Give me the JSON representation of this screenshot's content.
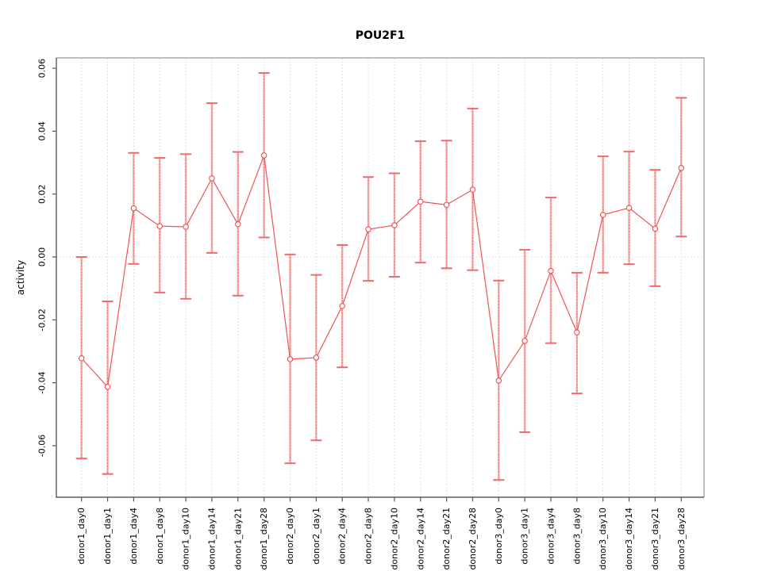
{
  "figure": {
    "background": "#ffffff"
  },
  "chart_data": {
    "type": "line",
    "title": "POU2F1",
    "xlabel": "",
    "ylabel": "activity",
    "legend": "none",
    "marker": "open-circle",
    "error_bars": true,
    "grid": {
      "vertical": "dotted",
      "zero_line": "dotted",
      "horizontal": "off"
    },
    "categories": [
      "donor1_day0",
      "donor1_day1",
      "donor1_day4",
      "donor1_day8",
      "donor1_day10",
      "donor1_day14",
      "donor1_day21",
      "donor1_day28",
      "donor2_day0",
      "donor2_day1",
      "donor2_day4",
      "donor2_day8",
      "donor2_day10",
      "donor2_day14",
      "donor2_day21",
      "donor2_day28",
      "donor3_day0",
      "donor3_day1",
      "donor3_day4",
      "donor3_day8",
      "donor3_day10",
      "donor3_day14",
      "donor3_day21",
      "donor3_day28"
    ],
    "series": [
      {
        "name": "POU2F1 activity",
        "values": [
          -0.0322,
          -0.0413,
          0.0155,
          0.0098,
          0.0096,
          0.025,
          0.0104,
          0.0323,
          -0.0325,
          -0.032,
          -0.0156,
          0.0088,
          0.0101,
          0.0176,
          0.0166,
          0.0214,
          -0.0393,
          -0.0267,
          -0.0044,
          -0.024,
          0.0134,
          0.0156,
          0.009,
          0.0283
        ],
        "ci_low": [
          -0.0641,
          -0.069,
          -0.0022,
          -0.0113,
          -0.0133,
          0.0013,
          -0.0123,
          0.0062,
          -0.0656,
          -0.0583,
          -0.0351,
          -0.0076,
          -0.0063,
          -0.0018,
          -0.0036,
          -0.0042,
          -0.0709,
          -0.0557,
          -0.0274,
          -0.0434,
          -0.005,
          -0.0023,
          -0.0093,
          0.0065
        ],
        "ci_high": [
          0.0,
          -0.0141,
          0.0331,
          0.0315,
          0.0327,
          0.0489,
          0.0334,
          0.0585,
          0.0008,
          -0.0057,
          0.0038,
          0.0254,
          0.0266,
          0.0368,
          0.037,
          0.0472,
          -0.0075,
          0.0023,
          0.0189,
          -0.005,
          0.032,
          0.0335,
          0.0277,
          0.0506
        ]
      }
    ],
    "yticks": [
      -0.06,
      -0.04,
      -0.02,
      0.0,
      0.02,
      0.04,
      0.06
    ],
    "ytick_labels": [
      "-0.06",
      "-0.04",
      "-0.02",
      "0.00",
      "0.02",
      "0.04",
      "0.06"
    ],
    "ylim": [
      -0.0764,
      0.0633
    ],
    "colors": {
      "series_line": "#ef5454",
      "marker_stroke": "#e94f4f",
      "marker_fill": "#ffffff",
      "error_whisker": "#f9a9a9",
      "error_whisker_dash": "#e85c5c",
      "error_cap": "#f06a6a",
      "grid": "#d4d4d4",
      "axis_dark": "#3f3f3f",
      "box_light": "#a9a9a9",
      "tick": "#555555",
      "text": "#000000"
    }
  }
}
